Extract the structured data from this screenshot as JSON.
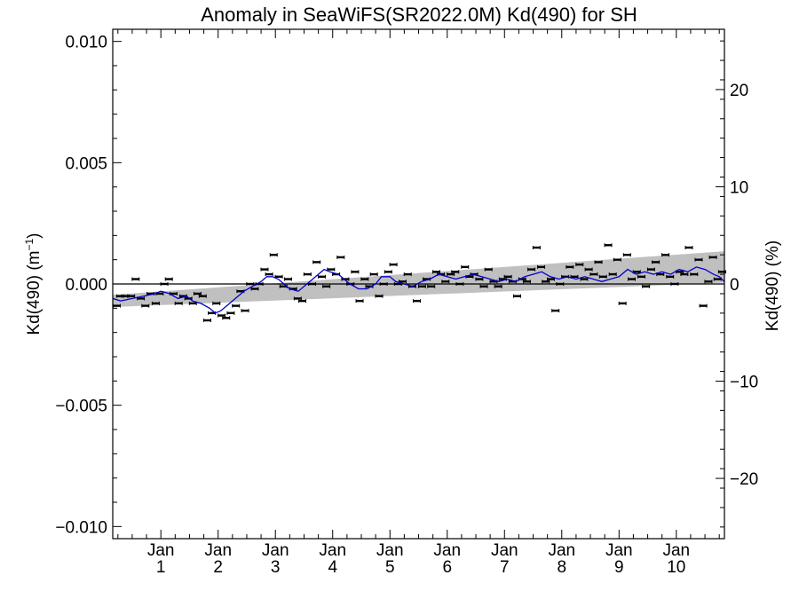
{
  "chart_data": {
    "type": "scatter",
    "title": "Anomaly in SeaWiFS(SR2022.0M) Kd(490) for SH",
    "ylabel_left": {
      "main": "Kd(490) (m",
      "sup": "−1",
      "close": ")"
    },
    "ylabel_right": "Kd(490) (%)",
    "xlabel": "",
    "x_tick_labels": [
      {
        "month": "Jan",
        "year": "1"
      },
      {
        "month": "Jan",
        "year": "2"
      },
      {
        "month": "Jan",
        "year": "3"
      },
      {
        "month": "Jan",
        "year": "4"
      },
      {
        "month": "Jan",
        "year": "5"
      },
      {
        "month": "Jan",
        "year": "6"
      },
      {
        "month": "Jan",
        "year": "7"
      },
      {
        "month": "Jan",
        "year": "8"
      },
      {
        "month": "Jan",
        "year": "9"
      },
      {
        "month": "Jan",
        "year": "10"
      }
    ],
    "xlim": [
      0.16,
      10.84
    ],
    "ylim_left": [
      -0.0105,
      0.0105
    ],
    "ylim_right": [
      -26.2,
      26.2
    ],
    "y_ticks_left": [
      {
        "value": 0.01,
        "label": "0.010"
      },
      {
        "value": 0.005,
        "label": "0.005"
      },
      {
        "value": 0.0,
        "label": "0.000"
      },
      {
        "value": -0.005,
        "label": "−0.005"
      },
      {
        "value": -0.01,
        "label": "−0.010"
      }
    ],
    "y_ticks_right": [
      {
        "value": 20,
        "label": "20"
      },
      {
        "value": 10,
        "label": "10"
      },
      {
        "value": 0,
        "label": "0"
      },
      {
        "value": -10,
        "label": "−10"
      },
      {
        "value": -20,
        "label": "−20"
      }
    ],
    "zero_line": 0.0,
    "trend_band": {
      "start": {
        "x": 0.16,
        "lower": -0.00095,
        "upper": -0.00045
      },
      "end": {
        "x": 10.84,
        "lower": 5e-05,
        "upper": 0.00135
      }
    },
    "colors": {
      "running_mean": "#0000cc",
      "band": "#c0c0c0",
      "points": "#000000",
      "axes": "#000000"
    },
    "points": [
      {
        "x": 0.23,
        "y": -0.0009
      },
      {
        "x": 0.29,
        "y": -0.0005
      },
      {
        "x": 0.38,
        "y": -0.0005
      },
      {
        "x": 0.48,
        "y": -0.0005
      },
      {
        "x": 0.56,
        "y": 0.0002
      },
      {
        "x": 0.65,
        "y": -0.0006
      },
      {
        "x": 0.73,
        "y": -0.0009
      },
      {
        "x": 0.82,
        "y": -0.0004
      },
      {
        "x": 0.91,
        "y": -0.0008
      },
      {
        "x": 0.98,
        "y": -0.0004
      },
      {
        "x": 1.06,
        "y": 0.0
      },
      {
        "x": 1.14,
        "y": 0.0002
      },
      {
        "x": 1.22,
        "y": -0.0004
      },
      {
        "x": 1.31,
        "y": -0.0008
      },
      {
        "x": 1.39,
        "y": -0.0005
      },
      {
        "x": 1.48,
        "y": -0.0006
      },
      {
        "x": 1.56,
        "y": -0.0008
      },
      {
        "x": 1.64,
        "y": -0.0004
      },
      {
        "x": 1.73,
        "y": -0.0005
      },
      {
        "x": 1.81,
        "y": -0.0015
      },
      {
        "x": 1.89,
        "y": -0.0012
      },
      {
        "x": 1.97,
        "y": -0.0008
      },
      {
        "x": 2.06,
        "y": -0.0013
      },
      {
        "x": 2.14,
        "y": -0.0014
      },
      {
        "x": 2.22,
        "y": -0.0012
      },
      {
        "x": 2.31,
        "y": -0.0009
      },
      {
        "x": 2.39,
        "y": -0.0003
      },
      {
        "x": 2.47,
        "y": -0.0011
      },
      {
        "x": 2.56,
        "y": 0.0
      },
      {
        "x": 2.64,
        "y": -0.0002
      },
      {
        "x": 2.72,
        "y": 0.0
      },
      {
        "x": 2.81,
        "y": 0.0006
      },
      {
        "x": 2.89,
        "y": 0.0004
      },
      {
        "x": 2.97,
        "y": 0.0012
      },
      {
        "x": 3.06,
        "y": 0.0003
      },
      {
        "x": 3.14,
        "y": -0.0001
      },
      {
        "x": 3.22,
        "y": 0.0002
      },
      {
        "x": 3.31,
        "y": -0.0002
      },
      {
        "x": 3.39,
        "y": -0.0006
      },
      {
        "x": 3.47,
        "y": -0.0007
      },
      {
        "x": 3.56,
        "y": 0.0004
      },
      {
        "x": 3.64,
        "y": 0.0
      },
      {
        "x": 3.72,
        "y": 0.0009
      },
      {
        "x": 3.81,
        "y": 0.0003
      },
      {
        "x": 3.89,
        "y": -0.0001
      },
      {
        "x": 3.97,
        "y": 0.0006
      },
      {
        "x": 4.06,
        "y": 0.0004
      },
      {
        "x": 4.14,
        "y": 0.0011
      },
      {
        "x": 4.22,
        "y": 0.0002
      },
      {
        "x": 4.31,
        "y": 0.0
      },
      {
        "x": 4.39,
        "y": 0.0005
      },
      {
        "x": 4.47,
        "y": -0.0007
      },
      {
        "x": 4.56,
        "y": 0.0002
      },
      {
        "x": 4.64,
        "y": -0.0001
      },
      {
        "x": 4.72,
        "y": 0.0004
      },
      {
        "x": 4.81,
        "y": -0.0005
      },
      {
        "x": 4.89,
        "y": 0.0
      },
      {
        "x": 4.97,
        "y": 0.0005
      },
      {
        "x": 5.06,
        "y": 0.0008
      },
      {
        "x": 5.14,
        "y": 0.0
      },
      {
        "x": 5.22,
        "y": 0.0001
      },
      {
        "x": 5.31,
        "y": 0.0004
      },
      {
        "x": 5.39,
        "y": -0.0001
      },
      {
        "x": 5.47,
        "y": -0.0007
      },
      {
        "x": 5.56,
        "y": -0.0001
      },
      {
        "x": 5.64,
        "y": 0.0002
      },
      {
        "x": 5.72,
        "y": -0.0001
      },
      {
        "x": 5.81,
        "y": 0.0005
      },
      {
        "x": 5.89,
        "y": 0.0004
      },
      {
        "x": 5.97,
        "y": 0.0001
      },
      {
        "x": 6.06,
        "y": 0.0004
      },
      {
        "x": 6.14,
        "y": 0.0005
      },
      {
        "x": 6.22,
        "y": 0.0
      },
      {
        "x": 6.31,
        "y": 0.0007
      },
      {
        "x": 6.39,
        "y": 0.0003
      },
      {
        "x": 6.47,
        "y": 0.0004
      },
      {
        "x": 6.56,
        "y": 0.0002
      },
      {
        "x": 6.64,
        "y": -0.0001
      },
      {
        "x": 6.72,
        "y": 0.0006
      },
      {
        "x": 6.81,
        "y": 0.0001
      },
      {
        "x": 6.89,
        "y": -0.0001
      },
      {
        "x": 6.97,
        "y": 0.0002
      },
      {
        "x": 7.06,
        "y": 0.0003
      },
      {
        "x": 7.14,
        "y": 0.0001
      },
      {
        "x": 7.22,
        "y": -0.0005
      },
      {
        "x": 7.31,
        "y": 0.0002
      },
      {
        "x": 7.39,
        "y": 0.0001
      },
      {
        "x": 7.47,
        "y": 0.0006
      },
      {
        "x": 7.56,
        "y": 0.0015
      },
      {
        "x": 7.64,
        "y": 0.0007
      },
      {
        "x": 7.72,
        "y": 0.0001
      },
      {
        "x": 7.81,
        "y": 0.0002
      },
      {
        "x": 7.89,
        "y": -0.0011
      },
      {
        "x": 7.97,
        "y": 0.0
      },
      {
        "x": 8.06,
        "y": 0.0003
      },
      {
        "x": 8.14,
        "y": 0.0007
      },
      {
        "x": 8.22,
        "y": 0.0003
      },
      {
        "x": 8.31,
        "y": 0.0008
      },
      {
        "x": 8.39,
        "y": 0.0002
      },
      {
        "x": 8.47,
        "y": 0.0006
      },
      {
        "x": 8.56,
        "y": 0.0004
      },
      {
        "x": 8.64,
        "y": 0.0009
      },
      {
        "x": 8.72,
        "y": 0.0003
      },
      {
        "x": 8.81,
        "y": 0.0016
      },
      {
        "x": 8.89,
        "y": 0.0004
      },
      {
        "x": 8.97,
        "y": 0.001
      },
      {
        "x": 9.06,
        "y": -0.0008
      },
      {
        "x": 9.14,
        "y": 0.0012
      },
      {
        "x": 9.22,
        "y": 0.0002
      },
      {
        "x": 9.31,
        "y": 0.0005
      },
      {
        "x": 9.39,
        "y": 0.0003
      },
      {
        "x": 9.47,
        "y": -0.0001
      },
      {
        "x": 9.56,
        "y": 0.0006
      },
      {
        "x": 9.64,
        "y": 0.0009
      },
      {
        "x": 9.72,
        "y": 0.0004
      },
      {
        "x": 9.81,
        "y": 0.0012
      },
      {
        "x": 9.89,
        "y": 0.0003
      },
      {
        "x": 9.97,
        "y": 0.0
      },
      {
        "x": 10.06,
        "y": 0.0005
      },
      {
        "x": 10.14,
        "y": 0.0004
      },
      {
        "x": 10.22,
        "y": 0.0015
      },
      {
        "x": 10.31,
        "y": 0.0004
      },
      {
        "x": 10.39,
        "y": 0.001
      },
      {
        "x": 10.47,
        "y": -0.0009
      },
      {
        "x": 10.56,
        "y": 0.0001
      },
      {
        "x": 10.64,
        "y": 0.0011
      },
      {
        "x": 10.72,
        "y": 0.0002
      },
      {
        "x": 10.8,
        "y": 0.0005
      }
    ],
    "running_mean": {
      "x": [
        0.16,
        0.3,
        0.5,
        0.7,
        0.9,
        1.0,
        1.15,
        1.3,
        1.45,
        1.55,
        1.7,
        1.85,
        1.95,
        2.05,
        2.15,
        2.3,
        2.45,
        2.6,
        2.75,
        2.85,
        2.95,
        3.05,
        3.15,
        3.25,
        3.4,
        3.55,
        3.65,
        3.75,
        3.85,
        3.95,
        4.1,
        4.2,
        4.3,
        4.45,
        4.6,
        4.75,
        4.85,
        5.0,
        5.1,
        5.25,
        5.4,
        5.55,
        5.7,
        5.85,
        6.0,
        6.15,
        6.3,
        6.45,
        6.6,
        6.75,
        6.9,
        7.05,
        7.2,
        7.35,
        7.5,
        7.65,
        7.8,
        7.95,
        8.1,
        8.25,
        8.4,
        8.55,
        8.7,
        8.85,
        9.0,
        9.15,
        9.3,
        9.45,
        9.6,
        9.75,
        9.9,
        10.05,
        10.2,
        10.35,
        10.5,
        10.65,
        10.75,
        10.84
      ],
      "y": [
        -0.0006,
        -0.0007,
        -0.0006,
        -0.0005,
        -0.0004,
        -0.0003,
        -0.0004,
        -0.0006,
        -0.0005,
        -0.0007,
        -0.0008,
        -0.001,
        -0.0012,
        -0.0011,
        -0.0009,
        -0.0006,
        -0.0003,
        -0.0001,
        0.0001,
        0.0003,
        0.0003,
        0.0002,
        0.0,
        -0.0002,
        -0.0003,
        0.0,
        0.0002,
        0.0004,
        0.0006,
        0.0005,
        0.0004,
        0.0002,
        0.0,
        -0.0002,
        -0.0002,
        0.0,
        0.0003,
        0.0003,
        0.0001,
        0.0,
        -0.0001,
        0.0001,
        0.0002,
        0.0004,
        0.0003,
        0.0002,
        0.0003,
        0.0004,
        0.0003,
        0.0002,
        0.0001,
        0.0002,
        0.0001,
        0.0003,
        0.0004,
        0.0005,
        0.0003,
        0.0002,
        0.0003,
        0.0002,
        0.0003,
        0.0002,
        0.0001,
        0.0002,
        0.0003,
        0.0006,
        0.0004,
        0.0005,
        0.0004,
        0.0005,
        0.0004,
        0.0006,
        0.0005,
        0.0007,
        0.0006,
        0.0004,
        0.0003,
        0.0001
      ]
    }
  }
}
